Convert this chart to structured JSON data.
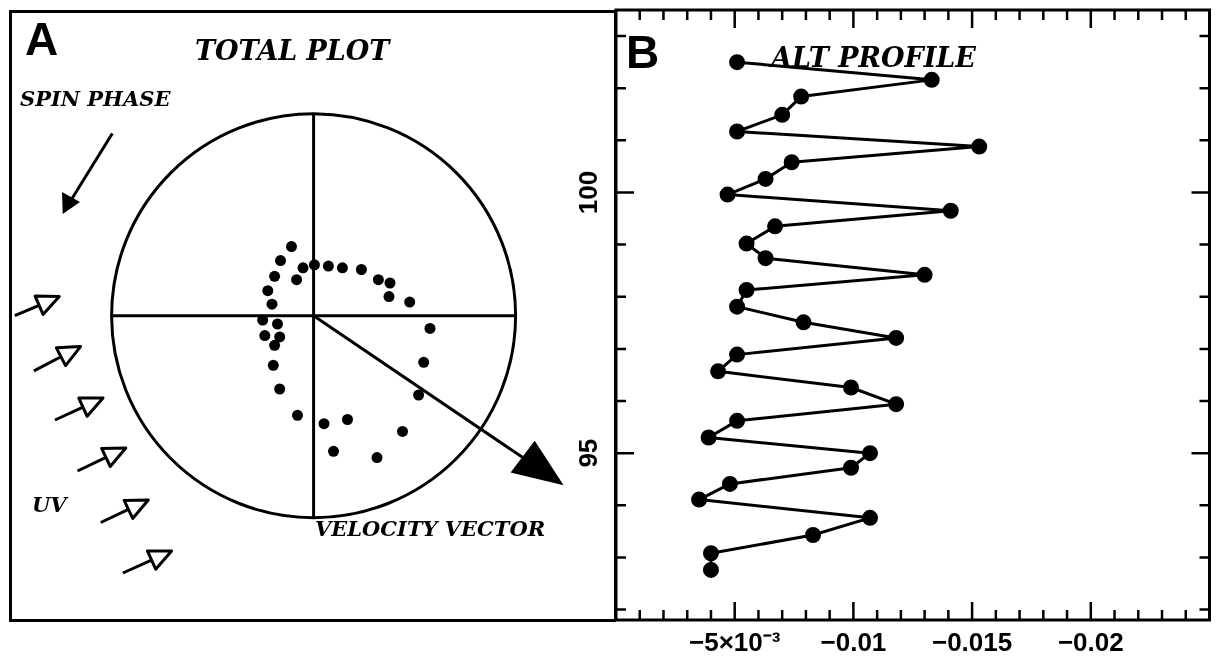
{
  "chart_data": [
    {
      "type": "other",
      "title": "TOTAL PLOT",
      "annotations": [
        "A",
        "SPIN PHASE",
        "UV",
        "VELOCITY VECTOR"
      ]
    },
    {
      "type": "line",
      "title": "ALT PROFILE",
      "annotations": [
        "B"
      ],
      "marker": "circle",
      "line_style": "solid",
      "grid": false,
      "legend": false,
      "x": [
        -0.0051,
        -0.0133,
        -0.0078,
        -0.007,
        -0.0051,
        -0.0153,
        -0.0074,
        -0.0063,
        -0.0047,
        -0.0141,
        -0.0067,
        -0.0055,
        -0.0063,
        -0.013,
        -0.0055,
        -0.0051,
        -0.0079,
        -0.0118,
        -0.0051,
        -0.0043,
        -0.0099,
        -0.0118,
        -0.0051,
        -0.0039,
        -0.0107,
        -0.0099,
        -0.0048,
        -0.0035,
        -0.0107,
        -0.0083,
        -0.004,
        -0.004
      ],
      "series": [
        {
          "color": "#000000",
          "values": [
            102.5,
            102.16,
            101.84,
            101.49,
            101.17,
            100.88,
            100.58,
            100.26,
            99.96,
            99.65,
            99.35,
            99.02,
            98.74,
            98.42,
            98.13,
            97.81,
            97.51,
            97.21,
            96.89,
            96.57,
            96.26,
            95.94,
            95.62,
            95.3,
            95.0,
            94.72,
            94.41,
            94.11,
            93.76,
            93.43,
            93.08,
            92.76
          ]
        }
      ],
      "xlim": [
        0,
        -0.025
      ],
      "ylim": [
        91.8,
        103.5
      ],
      "xticks": [
        {
          "value": -0.001,
          "label": null
        },
        {
          "value": -0.002,
          "label": null
        },
        {
          "value": -0.003,
          "label": null
        },
        {
          "value": -0.004,
          "label": null
        },
        {
          "value": -0.005,
          "label": "−5×10⁻³"
        },
        {
          "value": -0.006,
          "label": null
        },
        {
          "value": -0.007,
          "label": null
        },
        {
          "value": -0.008,
          "label": null
        },
        {
          "value": -0.009,
          "label": null
        },
        {
          "value": -0.01,
          "label": "−0.01"
        },
        {
          "value": -0.011,
          "label": null
        },
        {
          "value": -0.012,
          "label": null
        },
        {
          "value": -0.013,
          "label": null
        },
        {
          "value": -0.014,
          "label": null
        },
        {
          "value": -0.015,
          "label": "−0.015"
        },
        {
          "value": -0.016,
          "label": null
        },
        {
          "value": -0.017,
          "label": null
        },
        {
          "value": -0.018,
          "label": null
        },
        {
          "value": -0.019,
          "label": null
        },
        {
          "value": -0.02,
          "label": "−0.02"
        },
        {
          "value": -0.021,
          "label": null
        },
        {
          "value": -0.022,
          "label": null
        },
        {
          "value": -0.023,
          "label": null
        },
        {
          "value": -0.024,
          "label": null
        }
      ],
      "yticks": [
        {
          "value": 92,
          "label": null
        },
        {
          "value": 93,
          "label": null
        },
        {
          "value": 94,
          "label": null
        },
        {
          "value": 95,
          "label": "95"
        },
        {
          "value": 96,
          "label": null
        },
        {
          "value": 97,
          "label": null
        },
        {
          "value": 98,
          "label": null
        },
        {
          "value": 99,
          "label": null
        },
        {
          "value": 100,
          "label": "100"
        },
        {
          "value": 101,
          "label": null
        },
        {
          "value": 102,
          "label": null
        },
        {
          "value": 103,
          "label": null
        }
      ]
    }
  ]
}
